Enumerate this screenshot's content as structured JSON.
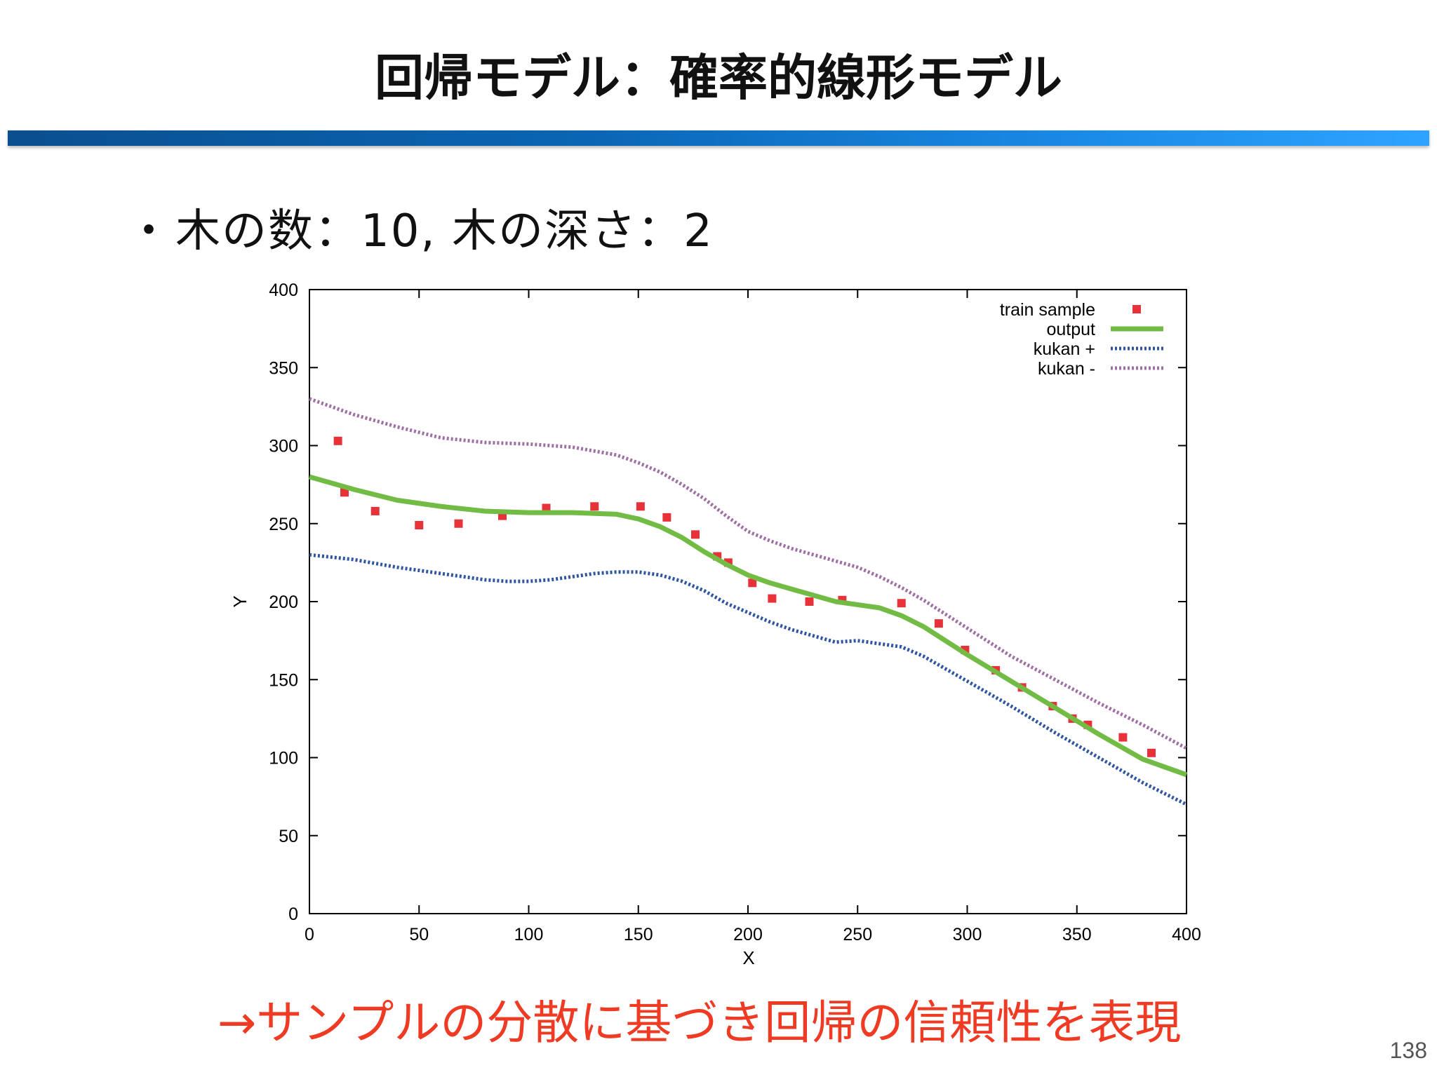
{
  "slide": {
    "title": "回帰モデル：確率的線形モデル",
    "bullet_mark": "・",
    "bullet_text": "木の数：10,  木の深さ：2",
    "conclusion": "→サンプルの分散に基づき回帰の信頼性を表現",
    "page_number": "138"
  },
  "colors": {
    "title_bar_start": "#0a4f8f",
    "title_bar_end": "#2ea3ff",
    "conclusion": "#ef3a24",
    "train_sample": "#e8323a",
    "output": "#72bb44",
    "kukan_plus": "#2f55a0",
    "kukan_minus": "#9e6fa2"
  },
  "chart_data": {
    "type": "scatter",
    "title": "",
    "xlabel": "X",
    "ylabel": "Y",
    "xlim": [
      0,
      400
    ],
    "ylim": [
      0,
      400
    ],
    "xticks": [
      0,
      50,
      100,
      150,
      200,
      250,
      300,
      350,
      400
    ],
    "yticks": [
      0,
      50,
      100,
      150,
      200,
      250,
      300,
      350,
      400
    ],
    "grid": false,
    "legend_position": "top-right",
    "series": [
      {
        "name": "train sample",
        "kind": "points",
        "color": "#e8323a",
        "x": [
          13,
          16,
          30,
          50,
          68,
          88,
          108,
          130,
          151,
          163,
          176,
          186,
          191,
          202,
          211,
          228,
          243,
          270,
          287,
          299,
          313,
          325,
          339,
          348,
          355,
          371,
          384
        ],
        "y": [
          303,
          270,
          258,
          249,
          250,
          255,
          260,
          261,
          261,
          254,
          243,
          229,
          225,
          212,
          202,
          200,
          201,
          199,
          186,
          169,
          156,
          145,
          133,
          125,
          121,
          113,
          103
        ]
      },
      {
        "name": "output",
        "kind": "line",
        "color": "#72bb44",
        "x": [
          0,
          20,
          40,
          60,
          80,
          100,
          120,
          140,
          150,
          160,
          170,
          180,
          190,
          200,
          210,
          220,
          230,
          240,
          250,
          260,
          270,
          280,
          290,
          300,
          320,
          340,
          360,
          380,
          400
        ],
        "y": [
          280,
          272,
          265,
          261,
          258,
          257,
          257,
          256,
          253,
          248,
          241,
          232,
          224,
          217,
          212,
          208,
          204,
          200,
          198,
          196,
          191,
          184,
          175,
          166,
          149,
          132,
          115,
          99,
          89
        ]
      },
      {
        "name": "kukan +",
        "kind": "dotted-line",
        "color": "#2f55a0",
        "x": [
          0,
          20,
          40,
          60,
          80,
          90,
          100,
          110,
          120,
          130,
          140,
          150,
          160,
          170,
          180,
          190,
          200,
          210,
          220,
          230,
          240,
          250,
          260,
          270,
          280,
          290,
          300,
          320,
          340,
          360,
          380,
          400
        ],
        "y": [
          230,
          227,
          222,
          218,
          214,
          213,
          213,
          214,
          216,
          218,
          219,
          219,
          217,
          213,
          207,
          199,
          193,
          187,
          182,
          178,
          174,
          175,
          173,
          171,
          165,
          157,
          149,
          133,
          116,
          100,
          84,
          70
        ]
      },
      {
        "name": "kukan -",
        "kind": "dotted-line",
        "color": "#9e6fa2",
        "x": [
          0,
          20,
          40,
          60,
          80,
          100,
          120,
          140,
          150,
          160,
          170,
          180,
          190,
          200,
          210,
          220,
          230,
          240,
          250,
          260,
          270,
          280,
          290,
          300,
          320,
          340,
          360,
          380,
          400
        ],
        "y": [
          330,
          320,
          312,
          305,
          302,
          301,
          299,
          294,
          289,
          283,
          275,
          266,
          255,
          245,
          239,
          234,
          230,
          226,
          222,
          216,
          209,
          201,
          192,
          183,
          165,
          150,
          135,
          121,
          106
        ]
      }
    ]
  }
}
